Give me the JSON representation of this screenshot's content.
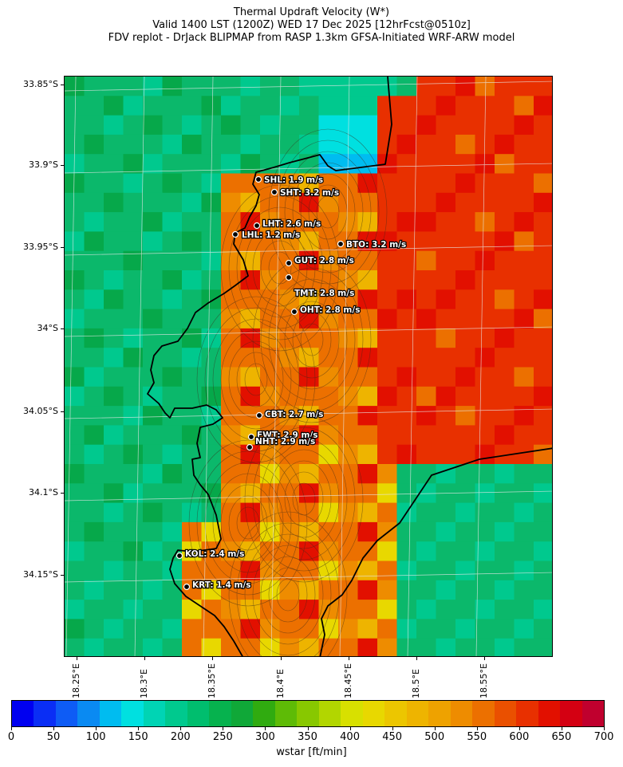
{
  "title": {
    "line1": "Thermal Updraft Velocity (W*)",
    "line2": "Valid 1400 LST (1200Z) WED 17 Dec 2025 [12hrFcst@0510z]",
    "line3": "FDV replot - DrJack BLIPMAP from RASP 1.3km GFSA-Initiated WRF-ARW model"
  },
  "map": {
    "lat_labels": [
      "33.85°S",
      "33.9°S",
      "33.95°S",
      "34°S",
      "34.05°S",
      "34.1°S",
      "34.15°S"
    ],
    "lon_labels": [
      "18.25°E",
      "18.3°E",
      "18.35°E",
      "18.4°E",
      "18.45°E",
      "18.5°E",
      "18.55°E"
    ],
    "stations": [
      {
        "code": "SHL",
        "label": "SHL: 1.9 m/s",
        "value": 1.9
      },
      {
        "code": "SHT",
        "label": "SHT: 3.2 m/s",
        "value": 3.2
      },
      {
        "code": "LHT",
        "label": "LHT: 2.6 m/s",
        "value": 2.6
      },
      {
        "code": "LHL",
        "label": "LHL: 1.2 m/s",
        "value": 1.2
      },
      {
        "code": "BTO",
        "label": "BTO: 3.2 m/s",
        "value": 3.2
      },
      {
        "code": "GUT",
        "label": "GUT: 2.8 m/s",
        "value": 2.8
      },
      {
        "code": "TMT",
        "label": "TMT: 2.8 m/s",
        "value": 2.8
      },
      {
        "code": "OHT",
        "label": "OHT: 2.8 m/s",
        "value": 2.8
      },
      {
        "code": "CBT",
        "label": "CBT: 2.7 m/s",
        "value": 2.7
      },
      {
        "code": "FWT",
        "label": "FWT: 2.9 m/s",
        "value": 2.9
      },
      {
        "code": "NHT",
        "label": "NHT: 2.9 m/s",
        "value": 2.9
      },
      {
        "code": "KOL",
        "label": "KOL: 2.4 m/s",
        "value": 2.4
      },
      {
        "code": "KRT",
        "label": "KRT: 1.4 m/s",
        "value": 1.4
      }
    ]
  },
  "colorbar": {
    "ticks": [
      "0",
      "50",
      "100",
      "150",
      "200",
      "250",
      "300",
      "350",
      "400",
      "450",
      "500",
      "550",
      "600",
      "650",
      "700"
    ],
    "label": "wstar [ft/min]",
    "colors": [
      "#0000f0",
      "#0a2ef5",
      "#0e5cf5",
      "#0a8af2",
      "#00bcf0",
      "#00e0e0",
      "#00d4b4",
      "#00c98e",
      "#00be6e",
      "#06b24e",
      "#10a838",
      "#30ab10",
      "#5ebb06",
      "#88c800",
      "#b2d600",
      "#d8e000",
      "#e8d800",
      "#ecc600",
      "#eeb400",
      "#eea200",
      "#ee8c00",
      "#ec7000",
      "#ea5000",
      "#e83000",
      "#e21000",
      "#d40012",
      "#c0002e"
    ]
  }
}
